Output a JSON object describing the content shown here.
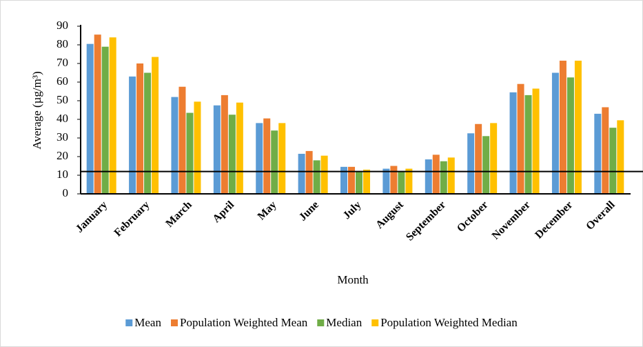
{
  "chart_data": {
    "type": "bar",
    "y_label": "Average (µg/m³)",
    "x_label": "Month",
    "categories": [
      "January",
      "February",
      "March",
      "April",
      "May",
      "June",
      "July",
      "August",
      "September",
      "October",
      "November",
      "December",
      "Overall"
    ],
    "series": [
      {
        "name": "Mean",
        "color": "#5b9bd5",
        "values": [
          80.5,
          63,
          52,
          47.5,
          38,
          21.5,
          14.5,
          13.5,
          18.5,
          32.5,
          54.5,
          65,
          43
        ]
      },
      {
        "name": "Population Weighted Mean",
        "color": "#ed7d31",
        "values": [
          85.5,
          70,
          57.5,
          53,
          40.5,
          23,
          14.5,
          15,
          21,
          37.5,
          59,
          71.5,
          46.5
        ]
      },
      {
        "name": "Median",
        "color": "#70ad47",
        "values": [
          79,
          65,
          43.5,
          42.5,
          34,
          18,
          12,
          12,
          17.5,
          31,
          53,
          62.5,
          35.5
        ]
      },
      {
        "name": "Population Weighted Median",
        "color": "#ffc000",
        "values": [
          84,
          73.5,
          49.5,
          49,
          38,
          20.5,
          13,
          13.5,
          19.5,
          38,
          56.5,
          71.5,
          39.5
        ]
      }
    ],
    "reference_line": 12,
    "ylim": [
      0,
      90
    ],
    "yticks": [
      0,
      10,
      20,
      30,
      40,
      50,
      60,
      70,
      80,
      90
    ],
    "grid": false,
    "legend": "bottom"
  }
}
